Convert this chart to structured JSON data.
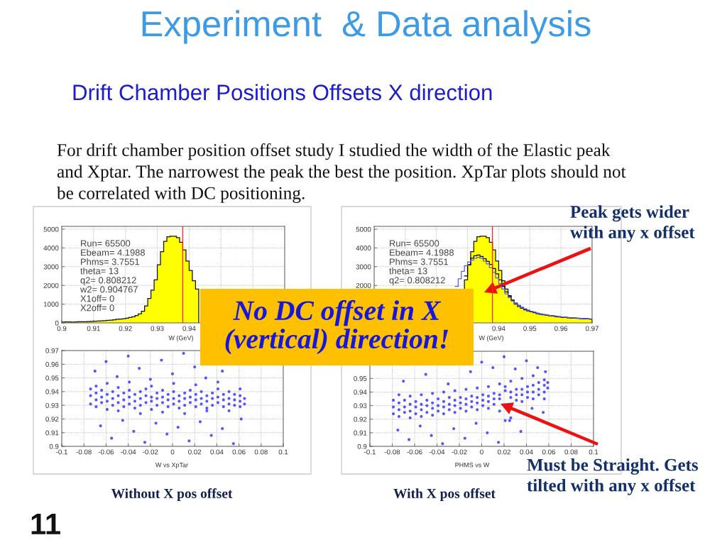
{
  "chart_data": [
    {
      "type": "histogram",
      "title": "Experiment  & Data analysis",
      "subtitle": "Drift Chamber Positions Offsets X direction",
      "xlabel": "W (GeV)",
      "bins": [
        0.9,
        0.901,
        0.902,
        0.903,
        0.904,
        0.905,
        0.906,
        0.907,
        0.908,
        0.909,
        0.91,
        0.911,
        0.912,
        0.913,
        0.914,
        0.915,
        0.916,
        0.917,
        0.918,
        0.919,
        0.92,
        0.921,
        0.922,
        0.923,
        0.924,
        0.925,
        0.926,
        0.927,
        0.928,
        0.929,
        0.93,
        0.931,
        0.932,
        0.933,
        0.934,
        0.935,
        0.936,
        0.937,
        0.938,
        0.939,
        0.94,
        0.941,
        0.942,
        0.943
      ],
      "values": [
        40,
        50,
        50,
        40,
        50,
        60,
        60,
        60,
        70,
        80,
        90,
        100,
        110,
        120,
        140,
        150,
        170,
        190,
        200,
        220,
        250,
        290,
        330,
        390,
        480,
        620,
        900,
        1300,
        1750,
        2300,
        3100,
        3800,
        4350,
        4600,
        4620,
        4620,
        4550,
        4300,
        3900,
        3300,
        2800,
        2250,
        1800
      ],
      "color": "#ffff00",
      "xlim": [
        0.9,
        0.97
      ],
      "ylim": [
        0,
        5150
      ],
      "xticks": [
        0.9,
        0.91,
        0.92,
        0.93,
        0.94,
        {
          "value": 0.95,
          "label": null
        },
        {
          "value": 0.96,
          "label": null
        },
        {
          "value": 0.97,
          "label": null
        }
      ],
      "yticks": [
        0,
        1000,
        2000,
        3000,
        4000,
        5000
      ],
      "grid": true,
      "ref_lines": [
        {
          "axis": "x",
          "value": 0.938,
          "color": "#ff2020"
        }
      ],
      "annotations": [
        "For drift chamber position offset study I studied the width of the Elastic peak\nand Xptar. The narrowest the peak the best the position. XpTar plots should not\nbe correlated with DC positioning.",
        "Run= 65500\nEbeam= 4.1988\nPhms= 3.7551\ntheta= 13\nq2= 0.808212\nw2= 0.904767\nX1off= 0\nX2off= 0",
        "No DC offset in X\n(vertical) direction!",
        "11"
      ]
    },
    {
      "type": "histogram",
      "xlabel": "W (GeV)",
      "bins": [
        0.929,
        0.93,
        0.931,
        0.932,
        0.933,
        0.934,
        0.935,
        0.936,
        0.937,
        0.938,
        0.939,
        0.94,
        0.941,
        0.942,
        0.943,
        0.944,
        0.945,
        0.946,
        0.947,
        0.948,
        0.949,
        0.95,
        0.951,
        0.952,
        0.953,
        0.954,
        0.955,
        0.956,
        0.957,
        0.958,
        0.959,
        0.96,
        0.961,
        0.962,
        0.963,
        0.964,
        0.965,
        0.966,
        0.967,
        0.968,
        0.969,
        0.97
      ],
      "series": [
        {
          "color": "#ffff00",
          "values": [
            2300,
            3100,
            3800,
            4350,
            4600,
            4620,
            4620,
            4550,
            4300,
            3900,
            3300,
            2800,
            2250,
            1800,
            1450,
            1200,
            1000,
            880,
            780,
            700,
            640,
            590,
            540,
            500,
            460,
            430,
            400,
            380,
            360,
            340,
            320,
            300,
            290,
            270,
            260,
            250,
            240,
            230,
            220,
            210,
            200
          ]
        },
        {
          "type": "step",
          "color": "#000000",
          "x": [
            0.929,
            0.93,
            0.931,
            0.932,
            0.933,
            0.934,
            0.935,
            0.936,
            0.937,
            0.938,
            0.939,
            0.94,
            0.941,
            0.942,
            0.943,
            0.944,
            0.945,
            0.946,
            0.947,
            0.948,
            0.949,
            0.95,
            0.951,
            0.952,
            0.953,
            0.954,
            0.955,
            0.956,
            0.957,
            0.958,
            0.959,
            0.96,
            0.961,
            0.962,
            0.963,
            0.964,
            0.965,
            0.966,
            0.967,
            0.968,
            0.969
          ],
          "values": [
            2500,
            3100,
            3450,
            3580,
            3620,
            3550,
            3420,
            3280,
            3120,
            2900,
            2620,
            2300,
            1950,
            1650,
            1420,
            1220,
            1060,
            930,
            830,
            740,
            670,
            610,
            560,
            510,
            470,
            440,
            410,
            390,
            370,
            350,
            330,
            310,
            300,
            280,
            270,
            260,
            250,
            240,
            230,
            220,
            210
          ]
        },
        {
          "type": "step",
          "color": "#5a5aff",
          "x": [
            0.926,
            0.927,
            0.928,
            0.929,
            0.93,
            0.931,
            0.932,
            0.933,
            0.934,
            0.935,
            0.936,
            0.937,
            0.938,
            0.939,
            0.94,
            0.941,
            0.942,
            0.943,
            0.944,
            0.945,
            0.946,
            0.947,
            0.948,
            0.949,
            0.95,
            0.951,
            0.952,
            0.953,
            0.954,
            0.955,
            0.956,
            0.957,
            0.958,
            0.959,
            0.96,
            0.961,
            0.962,
            0.963,
            0.964,
            0.965,
            0.966,
            0.967,
            0.968,
            0.969
          ],
          "values": [
            1950,
            2350,
            2750,
            3050,
            3250,
            3350,
            3450,
            3500,
            3450,
            3300,
            3150,
            2950,
            2700,
            2400,
            2100,
            1800,
            1550,
            1350,
            1170,
            1030,
            910,
            820,
            740,
            680,
            620,
            570,
            530,
            490,
            450,
            420,
            400,
            380,
            360,
            340,
            320,
            300,
            290,
            280,
            260,
            250,
            240,
            230,
            220,
            210
          ]
        }
      ],
      "xlim": [
        0.9,
        0.97
      ],
      "ylim": [
        0,
        5150
      ],
      "xticks": [
        {
          "value": 0.9,
          "label": null
        },
        {
          "value": 0.91,
          "label": null
        },
        {
          "value": 0.92,
          "label": null
        },
        {
          "value": 0.93,
          "label": null
        },
        0.94,
        0.95,
        0.96,
        0.97
      ],
      "yticks": [
        {
          "value": 0,
          "label": null
        },
        {
          "value": 1000,
          "label": null
        },
        2000,
        3000,
        4000,
        5000
      ],
      "grid": true,
      "ref_lines": [
        {
          "axis": "x",
          "value": 0.938,
          "color": "#ff2020"
        }
      ],
      "annotations": [
        "Run= 65500\nEbeam= 4.1988\nPhms= 3.7551\ntheta= 13\nq2= 0.808212",
        "Peak gets wider\nwith any x offset"
      ]
    },
    {
      "type": "scatter",
      "xlabel": "W vs XpTar",
      "x": [
        -0.074,
        -0.074,
        -0.074,
        -0.069,
        -0.069,
        -0.069,
        -0.069,
        -0.064,
        -0.064,
        -0.064,
        -0.059,
        -0.059,
        -0.059,
        -0.059,
        -0.054,
        -0.054,
        -0.054,
        -0.049,
        -0.049,
        -0.049,
        -0.049,
        -0.044,
        -0.044,
        -0.044,
        -0.039,
        -0.039,
        -0.039,
        -0.039,
        -0.034,
        -0.034,
        -0.034,
        -0.029,
        -0.029,
        -0.029,
        -0.029,
        -0.024,
        -0.024,
        -0.024,
        -0.019,
        -0.019,
        -0.019,
        -0.019,
        -0.014,
        -0.014,
        -0.014,
        -0.009,
        -0.009,
        -0.009,
        -0.009,
        -0.004,
        -0.004,
        -0.004,
        0.001,
        0.001,
        0.001,
        0.001,
        0.006,
        0.006,
        0.006,
        0.011,
        0.011,
        0.011,
        0.011,
        0.016,
        0.016,
        0.016,
        0.021,
        0.021,
        0.021,
        0.021,
        0.026,
        0.026,
        0.026,
        0.031,
        0.031,
        0.031,
        0.031,
        0.036,
        0.036,
        0.036,
        0.041,
        0.041,
        0.041,
        0.041,
        0.046,
        0.046,
        0.046,
        0.051,
        0.051,
        0.051,
        0.051,
        0.056,
        0.056,
        0.056,
        0.061,
        0.061,
        0.061,
        0.061,
        0.065,
        0.065,
        -0.07,
        -0.06,
        -0.05,
        -0.04,
        -0.03,
        -0.02,
        -0.01,
        0,
        0.01,
        0.02,
        0.03,
        0.045,
        -0.065,
        -0.055,
        -0.045,
        -0.035,
        -0.025,
        -0.015,
        -0.005,
        0.005,
        0.015,
        0.025,
        0.035,
        0.045,
        0.055,
        0.062
      ],
      "values": [
        0.931,
        0.937,
        0.942,
        0.929,
        0.934,
        0.939,
        0.944,
        0.932,
        0.936,
        0.941,
        0.927,
        0.933,
        0.938,
        0.946,
        0.93,
        0.935,
        0.94,
        0.926,
        0.932,
        0.937,
        0.943,
        0.929,
        0.934,
        0.939,
        0.931,
        0.936,
        0.941,
        0.947,
        0.928,
        0.933,
        0.938,
        0.924,
        0.93,
        0.935,
        0.94,
        0.932,
        0.937,
        0.942,
        0.927,
        0.933,
        0.936,
        0.944,
        0.93,
        0.935,
        0.939,
        0.925,
        0.932,
        0.936,
        0.941,
        0.929,
        0.934,
        0.938,
        0.931,
        0.935,
        0.94,
        0.946,
        0.928,
        0.933,
        0.937,
        0.924,
        0.93,
        0.935,
        0.939,
        0.932,
        0.936,
        0.941,
        0.929,
        0.934,
        0.938,
        0.945,
        0.931,
        0.935,
        0.94,
        0.926,
        0.928,
        0.933,
        0.937,
        0.93,
        0.935,
        0.939,
        0.932,
        0.936,
        0.942,
        0.947,
        0.929,
        0.934,
        0.938,
        0.926,
        0.931,
        0.935,
        0.94,
        0.93,
        0.934,
        0.938,
        0.929,
        0.933,
        0.937,
        0.942,
        0.931,
        0.935,
        0.955,
        0.962,
        0.951,
        0.966,
        0.957,
        0.949,
        0.963,
        0.953,
        0.968,
        0.958,
        0.95,
        0.955,
        0.915,
        0.906,
        0.919,
        0.911,
        0.903,
        0.917,
        0.909,
        0.914,
        0.904,
        0.918,
        0.908,
        0.913,
        0.902,
        0.92
      ],
      "color": "#3838ff",
      "marker": "circle",
      "xlim": [
        -0.1,
        0.1
      ],
      "ylim": [
        0.9,
        0.97
      ],
      "xticks": [
        -0.1,
        -0.08,
        -0.06,
        -0.04,
        -0.02,
        0,
        0.02,
        0.04,
        0.06,
        0.08,
        0.1
      ],
      "yticks": [
        0.9,
        0.91,
        0.92,
        0.93,
        0.94,
        0.95,
        0.96,
        0.97
      ],
      "grid": true,
      "annotations": [
        "Without X pos offset"
      ]
    },
    {
      "type": "scatter",
      "xlabel": "PHMS vs W",
      "x": [
        -0.079,
        -0.079,
        -0.079,
        -0.074,
        -0.074,
        -0.074,
        -0.074,
        -0.069,
        -0.069,
        -0.069,
        -0.064,
        -0.064,
        -0.064,
        -0.064,
        -0.059,
        -0.059,
        -0.059,
        -0.054,
        -0.054,
        -0.054,
        -0.054,
        -0.049,
        -0.049,
        -0.049,
        -0.044,
        -0.044,
        -0.044,
        -0.044,
        -0.039,
        -0.039,
        -0.039,
        -0.034,
        -0.034,
        -0.034,
        -0.034,
        -0.029,
        -0.029,
        -0.029,
        -0.024,
        -0.024,
        -0.024,
        -0.024,
        -0.019,
        -0.019,
        -0.019,
        -0.014,
        -0.014,
        -0.014,
        -0.014,
        -0.009,
        -0.009,
        -0.009,
        -0.004,
        -0.004,
        -0.004,
        -0.004,
        0.001,
        0.001,
        0.001,
        0.006,
        0.006,
        0.006,
        0.006,
        0.011,
        0.011,
        0.011,
        0.016,
        0.016,
        0.016,
        0.016,
        0.021,
        0.021,
        0.021,
        0.026,
        0.026,
        0.026,
        0.026,
        0.031,
        0.031,
        0.031,
        0.036,
        0.036,
        0.036,
        0.036,
        0.041,
        0.041,
        0.041,
        0.046,
        0.046,
        0.046,
        0.046,
        0.051,
        0.051,
        0.051,
        0.056,
        0.056,
        0.056,
        0.056,
        0.059,
        0.059,
        -0.075,
        -0.065,
        -0.055,
        -0.045,
        -0.035,
        -0.025,
        -0.015,
        -0.005,
        0.005,
        0.015,
        0.025,
        0.035,
        0.045,
        0.055,
        -0.07,
        -0.05,
        -0.03,
        -0.01,
        0,
        0.01,
        0.02,
        0.03,
        0.04,
        0.05,
        0.057
      ],
      "values": [
        0.924,
        0.929,
        0.934,
        0.922,
        0.927,
        0.932,
        0.938,
        0.925,
        0.929,
        0.934,
        0.921,
        0.926,
        0.931,
        0.937,
        0.924,
        0.929,
        0.933,
        0.922,
        0.927,
        0.931,
        0.938,
        0.925,
        0.93,
        0.934,
        0.923,
        0.928,
        0.932,
        0.939,
        0.926,
        0.93,
        0.935,
        0.924,
        0.929,
        0.933,
        0.94,
        0.927,
        0.931,
        0.936,
        0.925,
        0.93,
        0.934,
        0.941,
        0.928,
        0.932,
        0.936,
        0.926,
        0.931,
        0.935,
        0.942,
        0.929,
        0.933,
        0.937,
        0.927,
        0.932,
        0.936,
        0.943,
        0.93,
        0.934,
        0.938,
        0.928,
        0.933,
        0.937,
        0.944,
        0.931,
        0.935,
        0.939,
        0.926,
        0.935,
        0.938,
        0.946,
        0.919,
        0.941,
        0.944,
        0.921,
        0.936,
        0.94,
        0.948,
        0.934,
        0.938,
        0.942,
        0.933,
        0.938,
        0.942,
        0.95,
        0.936,
        0.94,
        0.944,
        0.935,
        0.94,
        0.945,
        0.952,
        0.938,
        0.942,
        0.947,
        0.94,
        0.945,
        0.949,
        0.935,
        0.943,
        0.947,
        0.912,
        0.905,
        0.915,
        0.908,
        0.902,
        0.913,
        0.906,
        0.917,
        0.91,
        0.903,
        0.919,
        0.911,
        0.928,
        0.925,
        0.948,
        0.953,
        0.946,
        0.955,
        0.962,
        0.958,
        0.966,
        0.957,
        0.963,
        0.958,
        0.955
      ],
      "color": "#3838ff",
      "marker": "circle",
      "xlim": [
        -0.1,
        0.1
      ],
      "ylim": [
        0.9,
        0.97
      ],
      "xticks": [
        -0.1,
        -0.08,
        -0.06,
        -0.04,
        -0.02,
        0,
        0.02,
        0.04,
        0.06,
        0.08,
        0.1
      ],
      "yticks": [
        0.9,
        0.91,
        0.92,
        0.93,
        0.94,
        0.95,
        {
          "value": 0.96,
          "label": null
        },
        {
          "value": 0.97,
          "label": null
        }
      ],
      "grid": true,
      "annotations": [
        "With X pos offset",
        "Must be Straight. Gets\ntilted with any x offset"
      ]
    }
  ]
}
